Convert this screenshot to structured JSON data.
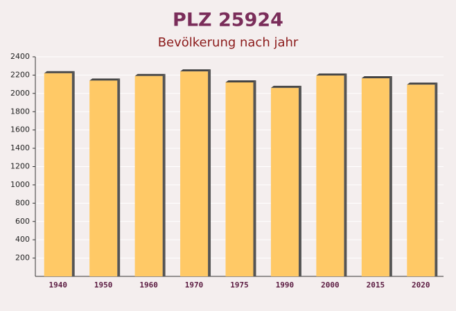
{
  "chart_data": {
    "type": "bar",
    "title": "PLZ 25924",
    "subtitle": "Bevölkerung nach jahr",
    "categories": [
      "1940",
      "1950",
      "1960",
      "1970",
      "1975",
      "1990",
      "2000",
      "2015",
      "2020"
    ],
    "values": [
      2220,
      2140,
      2190,
      2240,
      2120,
      2060,
      2195,
      2165,
      2095
    ],
    "color": "#ffc966",
    "ylim": [
      0,
      2400
    ],
    "yticks": [
      200,
      400,
      600,
      800,
      1000,
      1200,
      1400,
      1600,
      1800,
      2000,
      2200,
      2400
    ],
    "grid": true
  }
}
